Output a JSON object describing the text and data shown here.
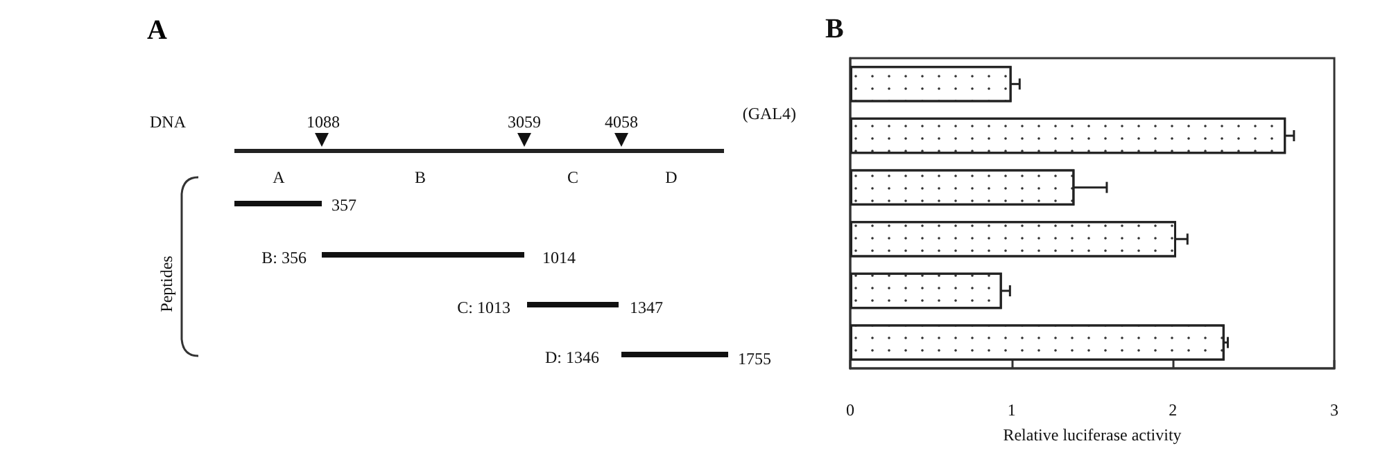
{
  "chart_data": [
    {
      "type": "other",
      "title": "A",
      "annotations": [
        "DNA",
        "1088",
        "3059",
        "4058",
        "(GAL4)",
        "A",
        "B",
        "C",
        "D",
        "357",
        "B: 356",
        "1014",
        "C: 1013",
        "1347",
        "D: 1346",
        "1755",
        "Peptides"
      ]
    },
    {
      "type": "bar",
      "title": "B",
      "orientation": "horizontal",
      "xlabel": "Relative luciferase activity",
      "categories": [
        null,
        null,
        null,
        null,
        null,
        null
      ],
      "values": [
        1.0,
        2.7,
        1.39,
        2.02,
        0.94,
        2.32
      ],
      "errors": [
        0.05,
        0.05,
        0.2,
        0.07,
        0.05,
        0.02
      ],
      "color": "#ffffff",
      "xlim": [
        0,
        3
      ],
      "xticks": [
        0,
        1,
        2,
        3
      ],
      "grid": false
    }
  ]
}
